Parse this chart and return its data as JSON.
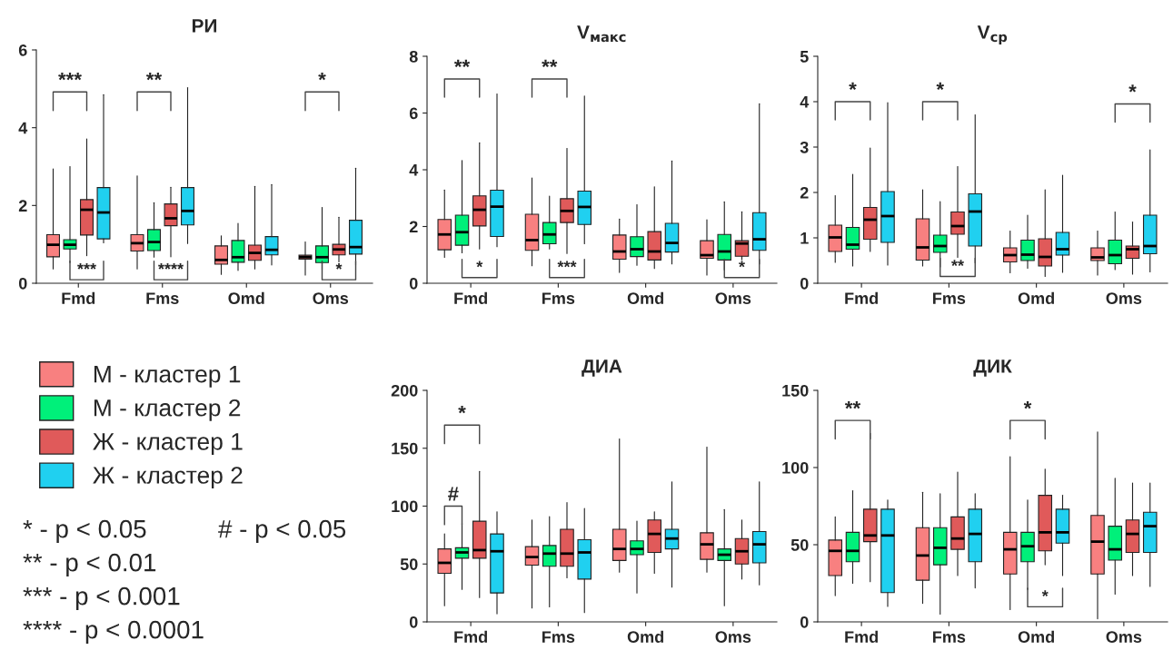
{
  "chart_data": [
    {
      "type": "box",
      "title": "РИ",
      "categories": [
        "Fmd",
        "Fms",
        "Omd",
        "Oms"
      ],
      "ylim": [
        0,
        6
      ],
      "yticks": [
        0,
        2,
        4,
        6
      ],
      "legend": "bottom",
      "grid": false,
      "series": [
        {
          "name": "М - кластер 1",
          "color": "#f88080",
          "boxes": [
            {
              "low": 0.37,
              "q1": 0.68,
              "median": 0.99,
              "q3": 1.25,
              "high": 2.94
            },
            {
              "low": 0.37,
              "q1": 0.83,
              "median": 1.03,
              "q3": 1.25,
              "high": 2.76
            },
            {
              "low": 0.23,
              "q1": 0.49,
              "median": 0.6,
              "q3": 0.96,
              "high": 1.22
            },
            {
              "low": 0.21,
              "q1": 0.62,
              "median": 0.67,
              "q3": 0.72,
              "high": 1.06
            }
          ]
        },
        {
          "name": "М - кластер 2",
          "color": "#00f07a",
          "boxes": [
            {
              "low": 0.53,
              "q1": 0.88,
              "median": 0.99,
              "q3": 1.12,
              "high": 3.0
            },
            {
              "low": 0.67,
              "q1": 0.84,
              "median": 1.06,
              "q3": 1.38,
              "high": 2.07
            },
            {
              "low": 0.33,
              "q1": 0.54,
              "median": 0.67,
              "q3": 1.1,
              "high": 1.54
            },
            {
              "low": 0.35,
              "q1": 0.53,
              "median": 0.67,
              "q3": 0.96,
              "high": 1.95
            }
          ]
        },
        {
          "name": "Ж - кластер 1",
          "color": "#e05a5a",
          "boxes": [
            {
              "low": 0.71,
              "q1": 1.24,
              "median": 1.89,
              "q3": 2.15,
              "high": 3.71
            },
            {
              "low": 0.68,
              "q1": 1.48,
              "median": 1.67,
              "q3": 2.04,
              "high": 2.47
            },
            {
              "low": 0.37,
              "q1": 0.59,
              "median": 0.78,
              "q3": 0.98,
              "high": 2.49
            },
            {
              "low": 0.35,
              "q1": 0.73,
              "median": 0.87,
              "q3": 1.0,
              "high": 1.7
            }
          ]
        },
        {
          "name": "Ж - кластер 2",
          "color": "#20d0f0",
          "boxes": [
            {
              "low": 1.04,
              "q1": 1.14,
              "median": 1.82,
              "q3": 2.46,
              "high": 4.85
            },
            {
              "low": 1.02,
              "q1": 1.5,
              "median": 1.86,
              "q3": 2.46,
              "high": 5.03
            },
            {
              "low": 0.47,
              "q1": 0.73,
              "median": 0.86,
              "q3": 1.2,
              "high": 2.54
            },
            {
              "low": 0.47,
              "q1": 0.75,
              "median": 0.93,
              "q3": 1.62,
              "high": 2.96
            }
          ]
        }
      ],
      "annotations": [
        "***",
        "***",
        "**",
        "****",
        "*",
        "*"
      ]
    },
    {
      "type": "box",
      "title": "V$_{макс}$",
      "categories": [
        "Fmd",
        "Fms",
        "Omd",
        "Oms"
      ],
      "ylim": [
        0,
        8
      ],
      "yticks": [
        0,
        2,
        4,
        6,
        8
      ],
      "grid": false,
      "series": [
        {
          "color": "#f88080",
          "boxes": [
            {
              "low": 0.91,
              "q1": 1.18,
              "median": 1.72,
              "q3": 2.25,
              "high": 3.29
            },
            {
              "low": 0.62,
              "q1": 1.16,
              "median": 1.52,
              "q3": 2.43,
              "high": 3.71
            },
            {
              "low": 0.38,
              "q1": 0.85,
              "median": 1.12,
              "q3": 1.7,
              "high": 2.26
            },
            {
              "low": 0.29,
              "q1": 0.88,
              "median": 0.99,
              "q3": 1.5,
              "high": 2.24
            }
          ]
        },
        {
          "color": "#00f07a",
          "boxes": [
            {
              "low": 1.07,
              "q1": 1.34,
              "median": 1.8,
              "q3": 2.4,
              "high": 4.33
            },
            {
              "low": 1.21,
              "q1": 1.39,
              "median": 1.72,
              "q3": 2.14,
              "high": 3.07
            },
            {
              "low": 0.63,
              "q1": 0.94,
              "median": 1.2,
              "q3": 1.64,
              "high": 2.77
            },
            {
              "low": 0.47,
              "q1": 0.82,
              "median": 1.12,
              "q3": 1.72,
              "high": 2.87
            }
          ]
        },
        {
          "color": "#e05a5a",
          "boxes": [
            {
              "low": 1.21,
              "q1": 2.02,
              "median": 2.59,
              "q3": 3.08,
              "high": 4.95
            },
            {
              "low": 1.05,
              "q1": 2.14,
              "median": 2.55,
              "q3": 2.98,
              "high": 4.75
            },
            {
              "low": 0.52,
              "q1": 0.82,
              "median": 1.12,
              "q3": 1.82,
              "high": 3.4
            },
            {
              "low": 0.72,
              "q1": 0.95,
              "median": 1.4,
              "q3": 1.5,
              "high": 2.52
            }
          ]
        },
        {
          "color": "#20d0f0",
          "boxes": [
            {
              "low": 1.29,
              "q1": 1.65,
              "median": 2.7,
              "q3": 3.28,
              "high": 6.67
            },
            {
              "low": 1.39,
              "q1": 2.07,
              "median": 2.69,
              "q3": 3.25,
              "high": 6.6
            },
            {
              "low": 0.68,
              "q1": 1.1,
              "median": 1.42,
              "q3": 2.11,
              "high": 4.31
            },
            {
              "low": 0.68,
              "q1": 1.16,
              "median": 1.55,
              "q3": 2.49,
              "high": 6.33
            }
          ]
        }
      ],
      "annotations": [
        "**",
        "*",
        "**",
        "***",
        "*"
      ]
    },
    {
      "type": "box",
      "title": "V$_{ср}$",
      "categories": [
        "Fmd",
        "Fms",
        "Omd",
        "Oms"
      ],
      "ylim": [
        0,
        5
      ],
      "yticks": [
        0,
        1,
        2,
        3,
        4,
        5
      ],
      "grid": false,
      "series": [
        {
          "color": "#f88080",
          "boxes": [
            {
              "low": 0.46,
              "q1": 0.7,
              "median": 1.01,
              "q3": 1.28,
              "high": 1.93
            },
            {
              "low": 0.38,
              "q1": 0.51,
              "median": 0.79,
              "q3": 1.42,
              "high": 2.06
            },
            {
              "low": 0.23,
              "q1": 0.47,
              "median": 0.62,
              "q3": 0.78,
              "high": 1.15
            },
            {
              "low": 0.18,
              "q1": 0.5,
              "median": 0.57,
              "q3": 0.78,
              "high": 1.15
            }
          ]
        },
        {
          "color": "#00f07a",
          "boxes": [
            {
              "low": 0.38,
              "q1": 0.75,
              "median": 0.85,
              "q3": 1.23,
              "high": 2.4
            },
            {
              "low": 0.36,
              "q1": 0.68,
              "median": 0.82,
              "q3": 1.06,
              "high": 1.8
            },
            {
              "low": 0.33,
              "q1": 0.5,
              "median": 0.63,
              "q3": 0.95,
              "high": 1.5
            },
            {
              "low": 0.3,
              "q1": 0.43,
              "median": 0.62,
              "q3": 0.95,
              "high": 1.57
            }
          ]
        },
        {
          "color": "#e05a5a",
          "boxes": [
            {
              "low": 0.7,
              "q1": 0.97,
              "median": 1.4,
              "q3": 1.67,
              "high": 2.98
            },
            {
              "low": 0.57,
              "q1": 1.08,
              "median": 1.26,
              "q3": 1.57,
              "high": 2.57
            },
            {
              "low": 0.15,
              "q1": 0.38,
              "median": 0.58,
              "q3": 0.98,
              "high": 2.06
            },
            {
              "low": 0.2,
              "q1": 0.55,
              "median": 0.75,
              "q3": 0.82,
              "high": 1.35
            }
          ]
        },
        {
          "color": "#20d0f0",
          "boxes": [
            {
              "low": 0.4,
              "q1": 0.9,
              "median": 1.48,
              "q3": 2.02,
              "high": 3.98
            },
            {
              "low": 0.45,
              "q1": 0.82,
              "median": 1.58,
              "q3": 1.97,
              "high": 3.71
            },
            {
              "low": 0.24,
              "q1": 0.62,
              "median": 0.75,
              "q3": 1.12,
              "high": 2.38
            },
            {
              "low": 0.25,
              "q1": 0.65,
              "median": 0.82,
              "q3": 1.5,
              "high": 2.94
            }
          ]
        }
      ],
      "annotations": [
        "*",
        "*",
        "**",
        "*"
      ]
    },
    {
      "type": "box",
      "title": "ДИА",
      "categories": [
        "Fmd",
        "Fms",
        "Omd",
        "Oms"
      ],
      "ylim": [
        0,
        200
      ],
      "yticks": [
        0,
        50,
        100,
        150,
        200
      ],
      "grid": false,
      "series": [
        {
          "color": "#f88080",
          "boxes": [
            {
              "low": 14,
              "q1": 42,
              "median": 51,
              "q3": 63,
              "high": 76
            },
            {
              "low": 12,
              "q1": 49,
              "median": 56,
              "q3": 65,
              "high": 88
            },
            {
              "low": 43,
              "q1": 53,
              "median": 63,
              "q3": 80,
              "high": 158
            },
            {
              "low": 43,
              "q1": 54,
              "median": 67,
              "q3": 77,
              "high": 151
            }
          ]
        },
        {
          "color": "#00f07a",
          "boxes": [
            {
              "low": 28,
              "q1": 55,
              "median": 60,
              "q3": 64,
              "high": 85
            },
            {
              "low": 13,
              "q1": 48,
              "median": 59,
              "q3": 66,
              "high": 91
            },
            {
              "low": 25,
              "q1": 58,
              "median": 63,
              "q3": 70,
              "high": 87
            },
            {
              "low": 14,
              "q1": 53,
              "median": 58,
              "q3": 63,
              "high": 97
            }
          ]
        },
        {
          "color": "#e05a5a",
          "boxes": [
            {
              "low": 21,
              "q1": 55,
              "median": 62,
              "q3": 87,
              "high": 130
            },
            {
              "low": 38,
              "q1": 48,
              "median": 59,
              "q3": 80,
              "high": 103
            },
            {
              "low": 42,
              "q1": 60,
              "median": 76,
              "q3": 88,
              "high": 95
            },
            {
              "low": 37,
              "q1": 50,
              "median": 61,
              "q3": 72,
              "high": 88
            }
          ]
        },
        {
          "color": "#20d0f0",
          "boxes": [
            {
              "low": 7,
              "q1": 25,
              "median": 61,
              "q3": 76,
              "high": 95
            },
            {
              "low": 8,
              "q1": 37,
              "median": 60,
              "q3": 71,
              "high": 98
            },
            {
              "low": 30,
              "q1": 63,
              "median": 72,
              "q3": 80,
              "high": 121
            },
            {
              "low": 32,
              "q1": 51,
              "median": 67,
              "q3": 78,
              "high": 121
            }
          ]
        }
      ],
      "annotations": [
        "*",
        "#"
      ]
    },
    {
      "type": "box",
      "title": "ДИК",
      "categories": [
        "Fmd",
        "Fms",
        "Omd",
        "Oms"
      ],
      "ylim": [
        0,
        150
      ],
      "yticks": [
        0,
        50,
        100,
        150
      ],
      "grid": false,
      "series": [
        {
          "color": "#f88080",
          "boxes": [
            {
              "low": 17,
              "q1": 30,
              "median": 46,
              "q3": 53,
              "high": 68
            },
            {
              "low": 12,
              "q1": 27,
              "median": 43,
              "q3": 61,
              "high": 84
            },
            {
              "low": 8,
              "q1": 31,
              "median": 47,
              "q3": 58,
              "high": 107
            },
            {
              "low": 2,
              "q1": 31,
              "median": 52,
              "q3": 69,
              "high": 123
            }
          ]
        },
        {
          "color": "#00f07a",
          "boxes": [
            {
              "low": 25,
              "q1": 39,
              "median": 46,
              "q3": 58,
              "high": 85
            },
            {
              "low": 5,
              "q1": 37,
              "median": 48,
              "q3": 61,
              "high": 83
            },
            {
              "low": 21,
              "q1": 39,
              "median": 49,
              "q3": 58,
              "high": 79
            },
            {
              "low": 18,
              "q1": 40,
              "median": 47,
              "q3": 62,
              "high": 93
            }
          ]
        },
        {
          "color": "#e05a5a",
          "boxes": [
            {
              "low": 26,
              "q1": 52,
              "median": 56,
              "q3": 73,
              "high": 122
            },
            {
              "low": 30,
              "q1": 47,
              "median": 54,
              "q3": 68,
              "high": 97
            },
            {
              "low": 37,
              "q1": 46,
              "median": 58,
              "q3": 82,
              "high": 99
            },
            {
              "low": 30,
              "q1": 45,
              "median": 57,
              "q3": 66,
              "high": 90
            }
          ]
        },
        {
          "color": "#20d0f0",
          "boxes": [
            {
              "low": 10,
              "q1": 19,
              "median": 56,
              "q3": 73,
              "high": 79
            },
            {
              "low": 22,
              "q1": 39,
              "median": 57,
              "q3": 73,
              "high": 83
            },
            {
              "low": 30,
              "q1": 51,
              "median": 58,
              "q3": 73,
              "high": 82
            },
            {
              "low": 23,
              "q1": 45,
              "median": 62,
              "q3": 71,
              "high": 90
            }
          ]
        }
      ],
      "annotations": [
        "**",
        "*",
        "*"
      ]
    },
    {
      "type": "other",
      "annotations": [
        "* - p < 0.05",
        "# - p < 0.05",
        "** - p < 0.01",
        "*** - p < 0.001",
        "**** - p < 0.0001"
      ]
    }
  ]
}
